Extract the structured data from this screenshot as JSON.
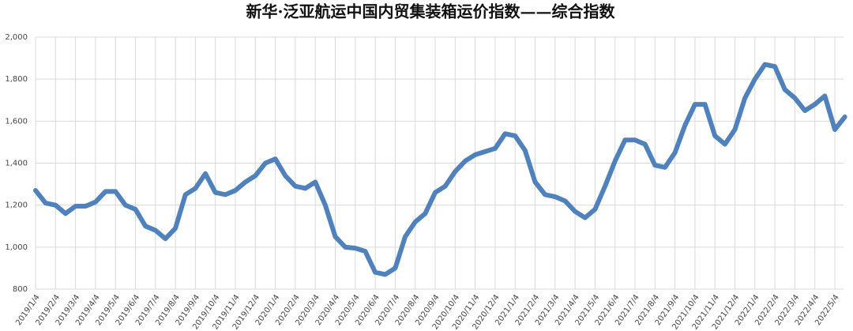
{
  "chart_data": {
    "type": "line",
    "title": "新华·泛亚航运中国内贸集装箱运价指数——综合指数",
    "categories": [
      "2019/1/4",
      null,
      "2019/2/4",
      null,
      "2019/3/4",
      null,
      "2019/4/4",
      null,
      "2019/5/4",
      null,
      "2019/6/4",
      null,
      "2019/7/4",
      null,
      "2019/8/4",
      null,
      "2019/9/4",
      null,
      "2019/10/4",
      null,
      "2019/11/4",
      null,
      "2019/12/4",
      null,
      "2020/1/4",
      null,
      "2020/2/4",
      null,
      "2020/3/4",
      null,
      "2020/4/4",
      null,
      "2020/5/4",
      null,
      "2020/6/4",
      null,
      "2020/7/4",
      null,
      "2020/8/4",
      null,
      "2020/9/4",
      null,
      "2020/10/4",
      null,
      "2020/11/4",
      null,
      "2020/12/4",
      null,
      "2021/1/4",
      null,
      "2021/2/4",
      null,
      "2021/3/4",
      null,
      "2021/4/4",
      null,
      "2021/5/4",
      null,
      "2021/6/4",
      null,
      "2021/7/4",
      null,
      "2021/8/4",
      null,
      "2021/9/4",
      null,
      "2021/10/4",
      null,
      "2021/11/4",
      null,
      "2021/12/4",
      null,
      "2022/1/4",
      null,
      "2022/2/4",
      null,
      "2022/3/4",
      null,
      "2022/4/4",
      null,
      "2022/5/4",
      null
    ],
    "series": [
      {
        "name": "综合指数",
        "color": "#4f81bd",
        "values": [
          1270,
          1210,
          1200,
          1160,
          1195,
          1195,
          1215,
          1265,
          1265,
          1200,
          1180,
          1100,
          1080,
          1040,
          1090,
          1250,
          1280,
          1350,
          1260,
          1250,
          1270,
          1310,
          1340,
          1400,
          1420,
          1340,
          1290,
          1280,
          1310,
          1200,
          1050,
          1000,
          995,
          980,
          880,
          870,
          900,
          1050,
          1120,
          1160,
          1260,
          1290,
          1360,
          1410,
          1440,
          1455,
          1470,
          1540,
          1530,
          1460,
          1310,
          1250,
          1240,
          1220,
          1170,
          1140,
          1180,
          1290,
          1410,
          1510,
          1510,
          1490,
          1390,
          1380,
          1450,
          1580,
          1680,
          1680,
          1530,
          1490,
          1560,
          1710,
          1800,
          1870,
          1860,
          1750,
          1710,
          1650,
          1680,
          1720,
          1560,
          1620
        ]
      }
    ],
    "ylim": [
      800,
      2000
    ],
    "yticks": [
      {
        "value": 800,
        "label": "800"
      },
      {
        "value": 1000,
        "label": "1,000"
      },
      {
        "value": 1200,
        "label": "1,200"
      },
      {
        "value": 1400,
        "label": "1,400"
      },
      {
        "value": 1600,
        "label": "1,600"
      },
      {
        "value": 1800,
        "label": "1,800"
      },
      {
        "value": 2000,
        "label": "2,000"
      }
    ],
    "grid": true
  }
}
